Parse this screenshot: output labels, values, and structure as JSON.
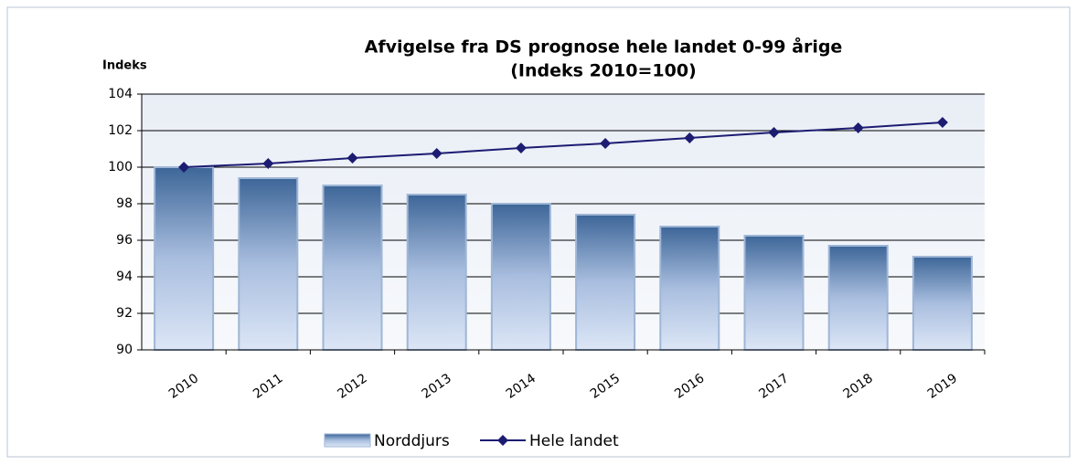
{
  "chart_data": {
    "type": "bar_line",
    "title": "Afvigelse fra DS prognose hele landet 0-99 årige",
    "subtitle": "(Indeks 2010=100)",
    "y_label": "Indeks",
    "categories": [
      "2010",
      "2011",
      "2012",
      "2013",
      "2014",
      "2015",
      "2016",
      "2017",
      "2018",
      "2019"
    ],
    "series": [
      {
        "name": "Norddjurs",
        "type": "bar",
        "color": "#3d6698",
        "values": [
          100,
          99.4,
          99.0,
          98.5,
          98.0,
          97.4,
          96.75,
          96.25,
          95.7,
          95.1
        ]
      },
      {
        "name": "Hele landet",
        "type": "line",
        "color": "#1c1c72",
        "values": [
          100,
          100.2,
          100.5,
          100.75,
          101.05,
          101.3,
          101.6,
          101.9,
          102.15,
          102.45
        ]
      }
    ],
    "ylim": [
      90,
      104
    ],
    "yticks": [
      90,
      92,
      94,
      96,
      98,
      100,
      102,
      104
    ],
    "grid": true,
    "legend": "bottom"
  }
}
